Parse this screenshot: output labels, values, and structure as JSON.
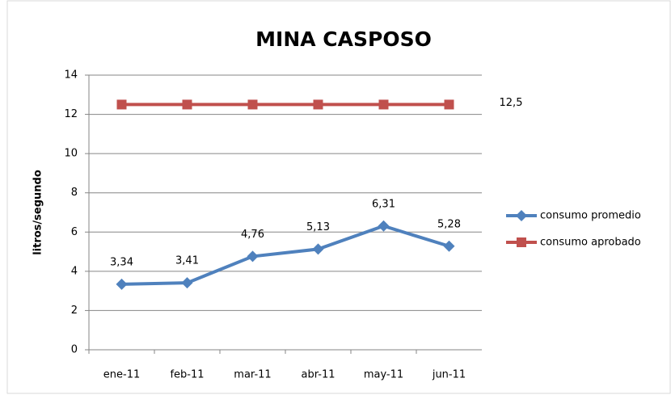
{
  "chart_data": {
    "type": "line",
    "title": "MINA CASPOSO",
    "y_label": "litros/segundo",
    "categories": [
      "ene-11",
      "feb-11",
      "mar-11",
      "abr-11",
      "may-11",
      "jun-11"
    ],
    "series": [
      {
        "name": "consumo promedio",
        "color": "#4f81bd",
        "marker": "diamond",
        "values": [
          3.34,
          3.41,
          4.76,
          5.13,
          6.31,
          5.28
        ],
        "value_labels": [
          "3,34",
          "3,41",
          "4,76",
          "5,13",
          "6,31",
          "5,28"
        ]
      },
      {
        "name": "consumo aprobado",
        "color": "#c0504d",
        "marker": "square",
        "values": [
          12.5,
          12.5,
          12.5,
          12.5,
          12.5,
          12.5
        ],
        "value_labels": [
          null,
          null,
          null,
          null,
          null,
          "12,5"
        ]
      }
    ],
    "ylim": [
      0,
      14
    ],
    "yticks": [
      0,
      2,
      4,
      6,
      8,
      10,
      12,
      14
    ],
    "grid": true,
    "legend": "right"
  }
}
